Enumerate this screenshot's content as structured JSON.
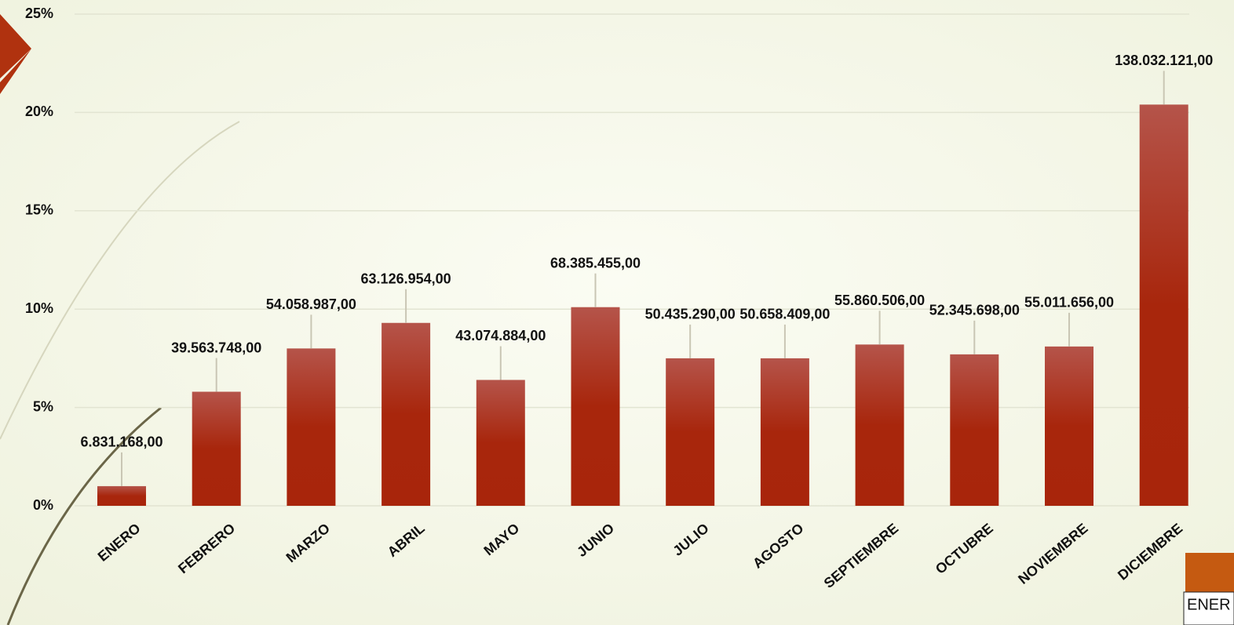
{
  "chart_data": {
    "type": "bar",
    "categories": [
      "ENERO",
      "FEBRERO",
      "MARZO",
      "ABRIL",
      "MAYO",
      "JUNIO",
      "JULIO",
      "AGOSTO",
      "SEPTIEMBRE",
      "OCTUBRE",
      "NOVIEMBRE",
      "DICIEMBRE"
    ],
    "values": [
      1.0,
      5.8,
      8.0,
      9.3,
      6.4,
      10.1,
      7.5,
      7.5,
      8.2,
      7.7,
      8.1,
      20.4
    ],
    "amounts": [
      "6.831.168,00",
      "39.563.748,00",
      "54.058.987,00",
      "63.126.954,00",
      "43.074.884,00",
      "68.385.455,00",
      "50.435.290,00",
      "50.658.409,00",
      "55.860.506,00",
      "52.345.698,00",
      "55.011.656,00",
      "138.032.121,00"
    ],
    "color": "#a8250b",
    "ylim": [
      0,
      25
    ],
    "yticks": [
      {
        "value": 0,
        "label": "0%"
      },
      {
        "value": 5,
        "label": "5%"
      },
      {
        "value": 10,
        "label": "10%"
      },
      {
        "value": 15,
        "label": "15%"
      },
      {
        "value": 20,
        "label": "20%"
      },
      {
        "value": 25,
        "label": "25%"
      }
    ],
    "grid": true
  },
  "table_fragment": "ENER"
}
